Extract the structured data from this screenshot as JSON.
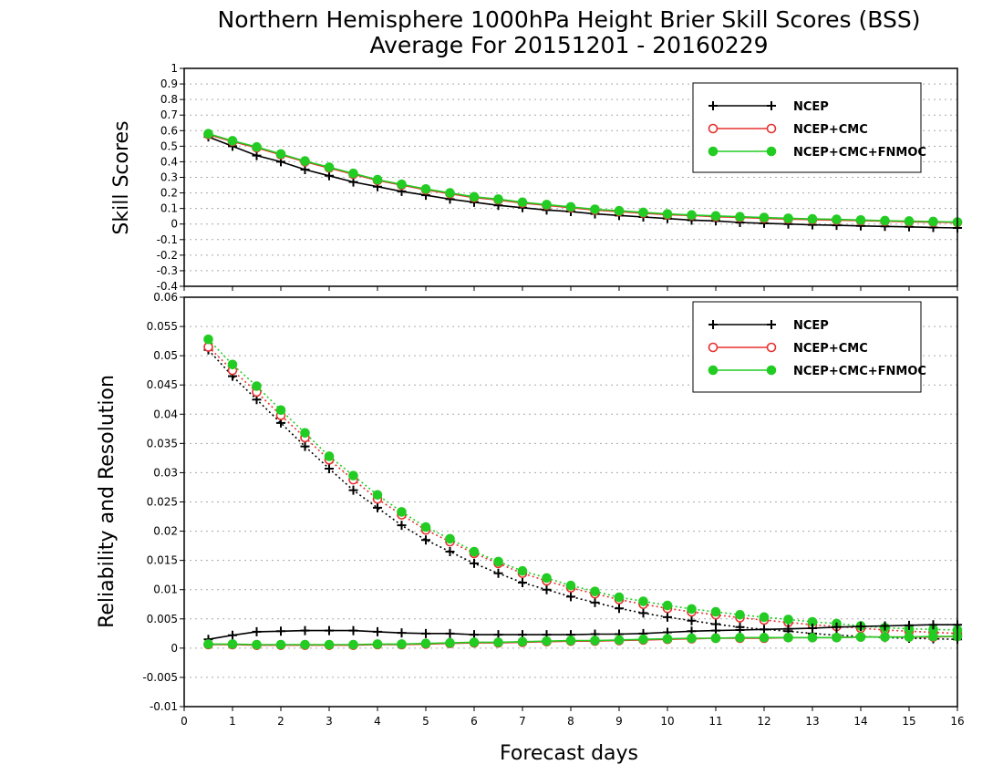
{
  "header": {
    "title_line1": "Northern Hemisphere 1000hPa Height Brier Skill Scores (BSS)",
    "title_line2": "Average For 20151201 - 20160229"
  },
  "chart_data": [
    {
      "type": "line",
      "ylabel": "Skill Scores",
      "xlim": [
        0,
        16
      ],
      "ylim": [
        -0.4,
        1
      ],
      "xticks": [
        "0",
        "1",
        "2",
        "3",
        "4",
        "5",
        "6",
        "7",
        "8",
        "9",
        "10",
        "11",
        "12",
        "13",
        "14",
        "15",
        "16"
      ],
      "yticks": [
        "-0.4",
        "-0.3",
        "-0.2",
        "-0.1",
        "0",
        "0.1",
        "0.2",
        "0.3",
        "0.4",
        "0.5",
        "0.6",
        "0.7",
        "0.8",
        "0.9",
        "1"
      ],
      "grid": true,
      "legend_position": "top-right",
      "x": [
        0.5,
        1,
        1.5,
        2,
        2.5,
        3,
        3.5,
        4,
        4.5,
        5,
        5.5,
        6,
        6.5,
        7,
        7.5,
        8,
        8.5,
        9,
        9.5,
        10,
        10.5,
        11,
        11.5,
        12,
        12.5,
        13,
        13.5,
        14,
        14.5,
        15,
        15.5,
        16
      ],
      "series": [
        {
          "name": "NCEP",
          "color": "#000000",
          "marker": "plus",
          "values": [
            0.56,
            0.5,
            0.44,
            0.4,
            0.35,
            0.31,
            0.27,
            0.24,
            0.21,
            0.185,
            0.16,
            0.14,
            0.12,
            0.105,
            0.09,
            0.08,
            0.065,
            0.055,
            0.045,
            0.035,
            0.025,
            0.02,
            0.01,
            0.005,
            0,
            -0.005,
            -0.008,
            -0.012,
            -0.015,
            -0.018,
            -0.022,
            -0.025
          ]
        },
        {
          "name": "NCEP+CMC",
          "color": "#e83030",
          "marker": "open-circle",
          "values": [
            0.575,
            0.53,
            0.49,
            0.445,
            0.4,
            0.36,
            0.32,
            0.28,
            0.25,
            0.22,
            0.195,
            0.17,
            0.155,
            0.135,
            0.12,
            0.105,
            0.09,
            0.08,
            0.07,
            0.06,
            0.055,
            0.047,
            0.042,
            0.037,
            0.032,
            0.028,
            0.025,
            0.022,
            0.018,
            0.015,
            0.012,
            0.01
          ]
        },
        {
          "name": "NCEP+CMC+FNMOC",
          "color": "#22cc22",
          "marker": "filled-circle",
          "values": [
            0.58,
            0.535,
            0.495,
            0.45,
            0.405,
            0.365,
            0.325,
            0.285,
            0.255,
            0.225,
            0.2,
            0.175,
            0.16,
            0.14,
            0.125,
            0.11,
            0.095,
            0.085,
            0.075,
            0.065,
            0.058,
            0.052,
            0.047,
            0.042,
            0.037,
            0.033,
            0.03,
            0.026,
            0.022,
            0.019,
            0.016,
            0.013
          ]
        }
      ]
    },
    {
      "type": "line",
      "ylabel": "Reliability and Resolution",
      "xlabel": "Forecast days",
      "xlim": [
        0,
        16
      ],
      "ylim": [
        -0.01,
        0.06
      ],
      "xticks": [
        "0",
        "1",
        "2",
        "3",
        "4",
        "5",
        "6",
        "7",
        "8",
        "9",
        "10",
        "11",
        "12",
        "13",
        "14",
        "15",
        "16"
      ],
      "yticks": [
        "-0.01",
        "-0.005",
        "0",
        "0.005",
        "0.01",
        "0.015",
        "0.02",
        "0.025",
        "0.03",
        "0.035",
        "0.04",
        "0.045",
        "0.05",
        "0.055",
        "0.06"
      ],
      "grid": true,
      "legend_position": "top-right",
      "x": [
        0.5,
        1,
        1.5,
        2,
        2.5,
        3,
        3.5,
        4,
        4.5,
        5,
        5.5,
        6,
        6.5,
        7,
        7.5,
        8,
        8.5,
        9,
        9.5,
        10,
        10.5,
        11,
        11.5,
        12,
        12.5,
        13,
        13.5,
        14,
        14.5,
        15,
        15.5,
        16
      ],
      "series": [
        {
          "name": "NCEP",
          "color": "#000000",
          "marker": "plus",
          "style": "dotted",
          "role": "resolution",
          "values": [
            0.051,
            0.0465,
            0.0425,
            0.0385,
            0.0345,
            0.0307,
            0.027,
            0.024,
            0.021,
            0.0185,
            0.0165,
            0.0145,
            0.0128,
            0.0112,
            0.01,
            0.0088,
            0.0078,
            0.0068,
            0.006,
            0.0053,
            0.0047,
            0.0041,
            0.0036,
            0.0032,
            0.0029,
            0.0025,
            0.0022,
            0.002,
            0.0018,
            0.0017,
            0.0016,
            0.0015
          ]
        },
        {
          "name": "NCEP+CMC",
          "color": "#e83030",
          "marker": "open-circle",
          "style": "dotted",
          "role": "resolution",
          "values": [
            0.0515,
            0.0475,
            0.0438,
            0.0398,
            0.036,
            0.0322,
            0.0288,
            0.0255,
            0.0228,
            0.0202,
            0.0182,
            0.0162,
            0.0145,
            0.0128,
            0.0115,
            0.0103,
            0.0093,
            0.0083,
            0.0075,
            0.0068,
            0.0062,
            0.0057,
            0.0052,
            0.0048,
            0.0044,
            0.004,
            0.0037,
            0.0034,
            0.0031,
            0.0029,
            0.0027,
            0.0025
          ]
        },
        {
          "name": "NCEP+CMC+FNMOC",
          "color": "#22cc22",
          "marker": "filled-circle",
          "style": "dotted",
          "role": "resolution",
          "values": [
            0.0528,
            0.0485,
            0.0448,
            0.0407,
            0.0368,
            0.0328,
            0.0295,
            0.0262,
            0.0233,
            0.0207,
            0.0187,
            0.0165,
            0.0148,
            0.0132,
            0.012,
            0.0107,
            0.0097,
            0.0087,
            0.008,
            0.0073,
            0.0067,
            0.0062,
            0.0057,
            0.0053,
            0.0049,
            0.0045,
            0.0042,
            0.0038,
            0.0035,
            0.0033,
            0.0032,
            0.0031
          ]
        },
        {
          "name": "NCEP",
          "color": "#000000",
          "marker": "plus",
          "style": "solid",
          "role": "reliability",
          "values": [
            0.0015,
            0.0022,
            0.0028,
            0.0029,
            0.003,
            0.003,
            0.003,
            0.0028,
            0.0026,
            0.0025,
            0.0025,
            0.0023,
            0.0023,
            0.0023,
            0.0023,
            0.0023,
            0.0024,
            0.0024,
            0.0025,
            0.0027,
            0.0029,
            0.003,
            0.0031,
            0.0032,
            0.0033,
            0.0034,
            0.0036,
            0.0037,
            0.0038,
            0.0039,
            0.004,
            0.004
          ]
        },
        {
          "name": "NCEP+CMC",
          "color": "#e83030",
          "marker": "open-circle",
          "style": "solid",
          "role": "reliability",
          "values": [
            0.0006,
            0.0006,
            0.0005,
            0.0005,
            0.0005,
            0.0005,
            0.0005,
            0.0006,
            0.0006,
            0.0007,
            0.0008,
            0.0009,
            0.0009,
            0.001,
            0.0011,
            0.0012,
            0.0012,
            0.0013,
            0.0014,
            0.0015,
            0.0016,
            0.0017,
            0.0017,
            0.0017,
            0.0018,
            0.0018,
            0.0018,
            0.0019,
            0.0019,
            0.0019,
            0.0019,
            0.002
          ]
        },
        {
          "name": "NCEP+CMC+FNMOC",
          "color": "#22cc22",
          "marker": "filled-circle",
          "style": "solid",
          "role": "reliability",
          "values": [
            0.0007,
            0.0007,
            0.0006,
            0.0006,
            0.0006,
            0.0006,
            0.0006,
            0.0007,
            0.0007,
            0.0008,
            0.0009,
            0.001,
            0.001,
            0.0011,
            0.0012,
            0.0013,
            0.0013,
            0.0014,
            0.0015,
            0.0016,
            0.0017,
            0.0017,
            0.0018,
            0.0018,
            0.0018,
            0.0018,
            0.0018,
            0.0019,
            0.0019,
            0.0019,
            0.002,
            0.002
          ]
        }
      ]
    }
  ]
}
